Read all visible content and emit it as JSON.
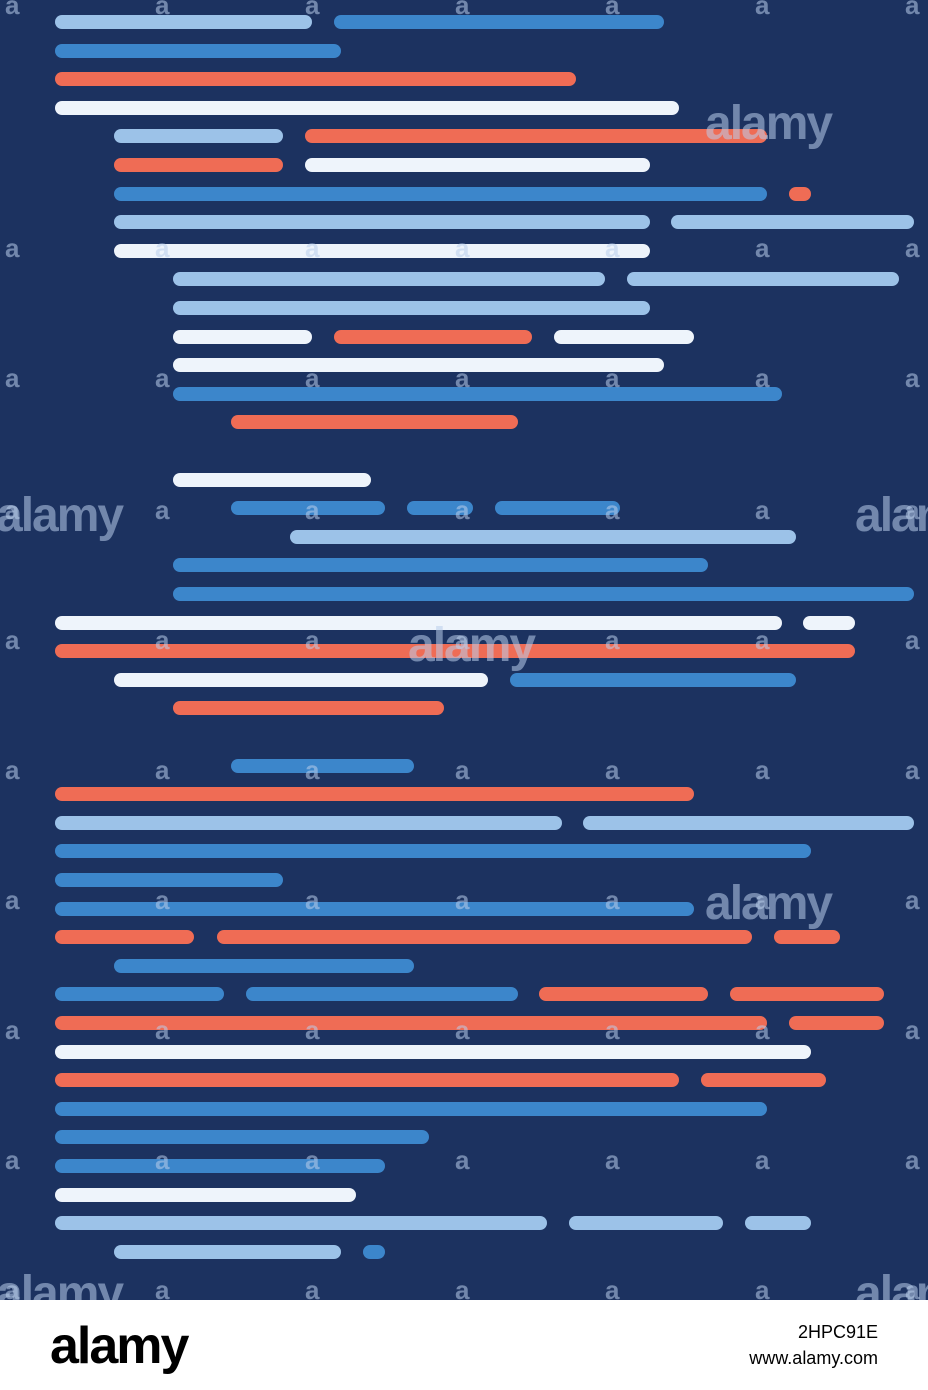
{
  "colors": {
    "background": "#1c3260",
    "light_blue": "#9cc2e8",
    "blue": "#3c86cb",
    "coral": "#ef6c55",
    "white": "#eef4fb"
  },
  "bar_rows": [
    [
      [
        "light_blue",
        55,
        312
      ],
      [
        "blue",
        334,
        664
      ]
    ],
    [
      [
        "blue",
        55,
        341
      ]
    ],
    [
      [
        "coral",
        55,
        576
      ]
    ],
    [
      [
        "white",
        55,
        679
      ]
    ],
    [
      [
        "light_blue",
        114,
        283
      ],
      [
        "coral",
        305,
        767
      ]
    ],
    [
      [
        "coral",
        114,
        283
      ],
      [
        "white",
        305,
        650
      ]
    ],
    [
      [
        "blue",
        114,
        767
      ],
      [
        "coral",
        789,
        811
      ]
    ],
    [
      [
        "light_blue",
        114,
        650
      ],
      [
        "light_blue",
        671,
        914
      ]
    ],
    [
      [
        "white",
        114,
        650
      ]
    ],
    [
      [
        "light_blue",
        173,
        605
      ],
      [
        "light_blue",
        627,
        899
      ]
    ],
    [
      [
        "light_blue",
        173,
        650
      ]
    ],
    [
      [
        "white",
        173,
        312
      ],
      [
        "coral",
        334,
        532
      ],
      [
        "white",
        554,
        694
      ]
    ],
    [
      [
        "white",
        173,
        664
      ]
    ],
    [
      [
        "blue",
        173,
        782
      ]
    ],
    [
      [
        "coral",
        231,
        518
      ]
    ],
    [],
    [
      [
        "white",
        173,
        371
      ]
    ],
    [
      [
        "blue",
        231,
        385
      ],
      [
        "blue",
        407,
        473
      ],
      [
        "blue",
        495,
        620
      ]
    ],
    [
      [
        "light_blue",
        290,
        796
      ]
    ],
    [
      [
        "blue",
        173,
        708
      ]
    ],
    [
      [
        "blue",
        173,
        914
      ]
    ],
    [
      [
        "white",
        55,
        782
      ],
      [
        "white",
        803,
        855
      ]
    ],
    [
      [
        "coral",
        55,
        855
      ]
    ],
    [
      [
        "white",
        114,
        488
      ],
      [
        "blue",
        510,
        796
      ]
    ],
    [
      [
        "coral",
        173,
        444
      ]
    ],
    [],
    [
      [
        "blue",
        231,
        414
      ]
    ],
    [
      [
        "coral",
        55,
        694
      ]
    ],
    [
      [
        "light_blue",
        55,
        562
      ],
      [
        "light_blue",
        583,
        914
      ]
    ],
    [
      [
        "blue",
        55,
        811
      ]
    ],
    [
      [
        "blue",
        55,
        283
      ]
    ],
    [
      [
        "blue",
        55,
        694
      ]
    ],
    [
      [
        "coral",
        55,
        194
      ],
      [
        "coral",
        217,
        752
      ],
      [
        "coral",
        774,
        840
      ]
    ],
    [
      [
        "blue",
        114,
        414
      ]
    ],
    [
      [
        "blue",
        55,
        224
      ],
      [
        "blue",
        246,
        518
      ],
      [
        "coral",
        539,
        708
      ],
      [
        "coral",
        730,
        884
      ]
    ],
    [
      [
        "coral",
        55,
        767
      ],
      [
        "coral",
        789,
        884
      ]
    ],
    [
      [
        "white",
        55,
        811
      ]
    ],
    [
      [
        "coral",
        55,
        679
      ],
      [
        "coral",
        701,
        826
      ]
    ],
    [
      [
        "blue",
        55,
        767
      ]
    ],
    [
      [
        "blue",
        55,
        429
      ]
    ],
    [
      [
        "blue",
        55,
        385
      ]
    ],
    [
      [
        "white",
        55,
        356
      ]
    ],
    [
      [
        "light_blue",
        55,
        547
      ],
      [
        "light_blue",
        569,
        723
      ],
      [
        "light_blue",
        745,
        811
      ]
    ],
    [
      [
        "light_blue",
        114,
        341
      ],
      [
        "blue",
        363,
        385
      ]
    ]
  ],
  "watermark": {
    "text": "alamy",
    "glyph": "a"
  },
  "footer": {
    "logo": "alamy",
    "image_id": "2HPC91E",
    "url": "www.alamy.com"
  }
}
